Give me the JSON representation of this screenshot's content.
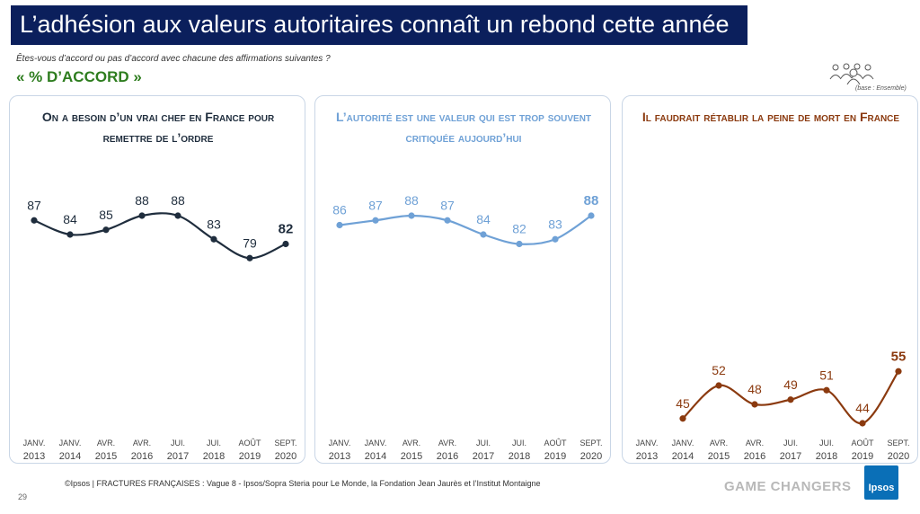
{
  "header": {
    "title": "L’adhésion aux valeurs autoritaires connaît un rebond cette année",
    "question": "Êtes-vous d’accord ou pas d’accord avec chacune des affirmations suivantes ?",
    "accord_label": "« % D’ACCORD »",
    "base_label": "(base : Ensemble)"
  },
  "chart_data": [
    {
      "type": "line",
      "title": "On a besoin d’un vrai chef en France pour remettre de l’ordre",
      "color": "#1f2d3d",
      "categories": [
        [
          "JANV.",
          "2013"
        ],
        [
          "JANV.",
          "2014"
        ],
        [
          "AVR.",
          "2015"
        ],
        [
          "AVR.",
          "2016"
        ],
        [
          "JUI.",
          "2017"
        ],
        [
          "JUI.",
          "2018"
        ],
        [
          "AOÛT",
          "2019"
        ],
        [
          "SEPT.",
          "2020"
        ]
      ],
      "values": [
        87,
        84,
        85,
        88,
        88,
        83,
        79,
        82
      ],
      "ylim": [
        40,
        100
      ]
    },
    {
      "type": "line",
      "title": "L’autorité est une valeur qui est trop souvent critiquée aujourd’hui",
      "color": "#6fa1d6",
      "categories": [
        [
          "JANV.",
          "2013"
        ],
        [
          "JANV.",
          "2014"
        ],
        [
          "AVR.",
          "2015"
        ],
        [
          "AVR.",
          "2016"
        ],
        [
          "JUI.",
          "2017"
        ],
        [
          "JUI.",
          "2018"
        ],
        [
          "AOÛT",
          "2019"
        ],
        [
          "SEPT.",
          "2020"
        ]
      ],
      "values": [
        86,
        87,
        88,
        87,
        84,
        82,
        83,
        88
      ],
      "ylim": [
        40,
        100
      ]
    },
    {
      "type": "line",
      "title": "Il faudrait rétablir la peine de mort en France",
      "color": "#8b3a0f",
      "categories": [
        [
          "JANV.",
          "2013"
        ],
        [
          "JANV.",
          "2014"
        ],
        [
          "AVR.",
          "2015"
        ],
        [
          "AVR.",
          "2016"
        ],
        [
          "JUI.",
          "2017"
        ],
        [
          "JUI.",
          "2018"
        ],
        [
          "AOÛT",
          "2019"
        ],
        [
          "SEPT.",
          "2020"
        ]
      ],
      "values": [
        null,
        45,
        52,
        48,
        49,
        51,
        44,
        55
      ],
      "ylim": [
        40,
        100
      ]
    }
  ],
  "footer": {
    "source": "©Ipsos | FRACTURES FRANÇAISES : Vague 8 - Ipsos/Sopra Steria pour Le Monde, la Fondation Jean Jaurès et l’Institut Montaigne",
    "page_number": "29",
    "tagline": "GAME CHANGERS",
    "logo_text": "Ipsos"
  }
}
